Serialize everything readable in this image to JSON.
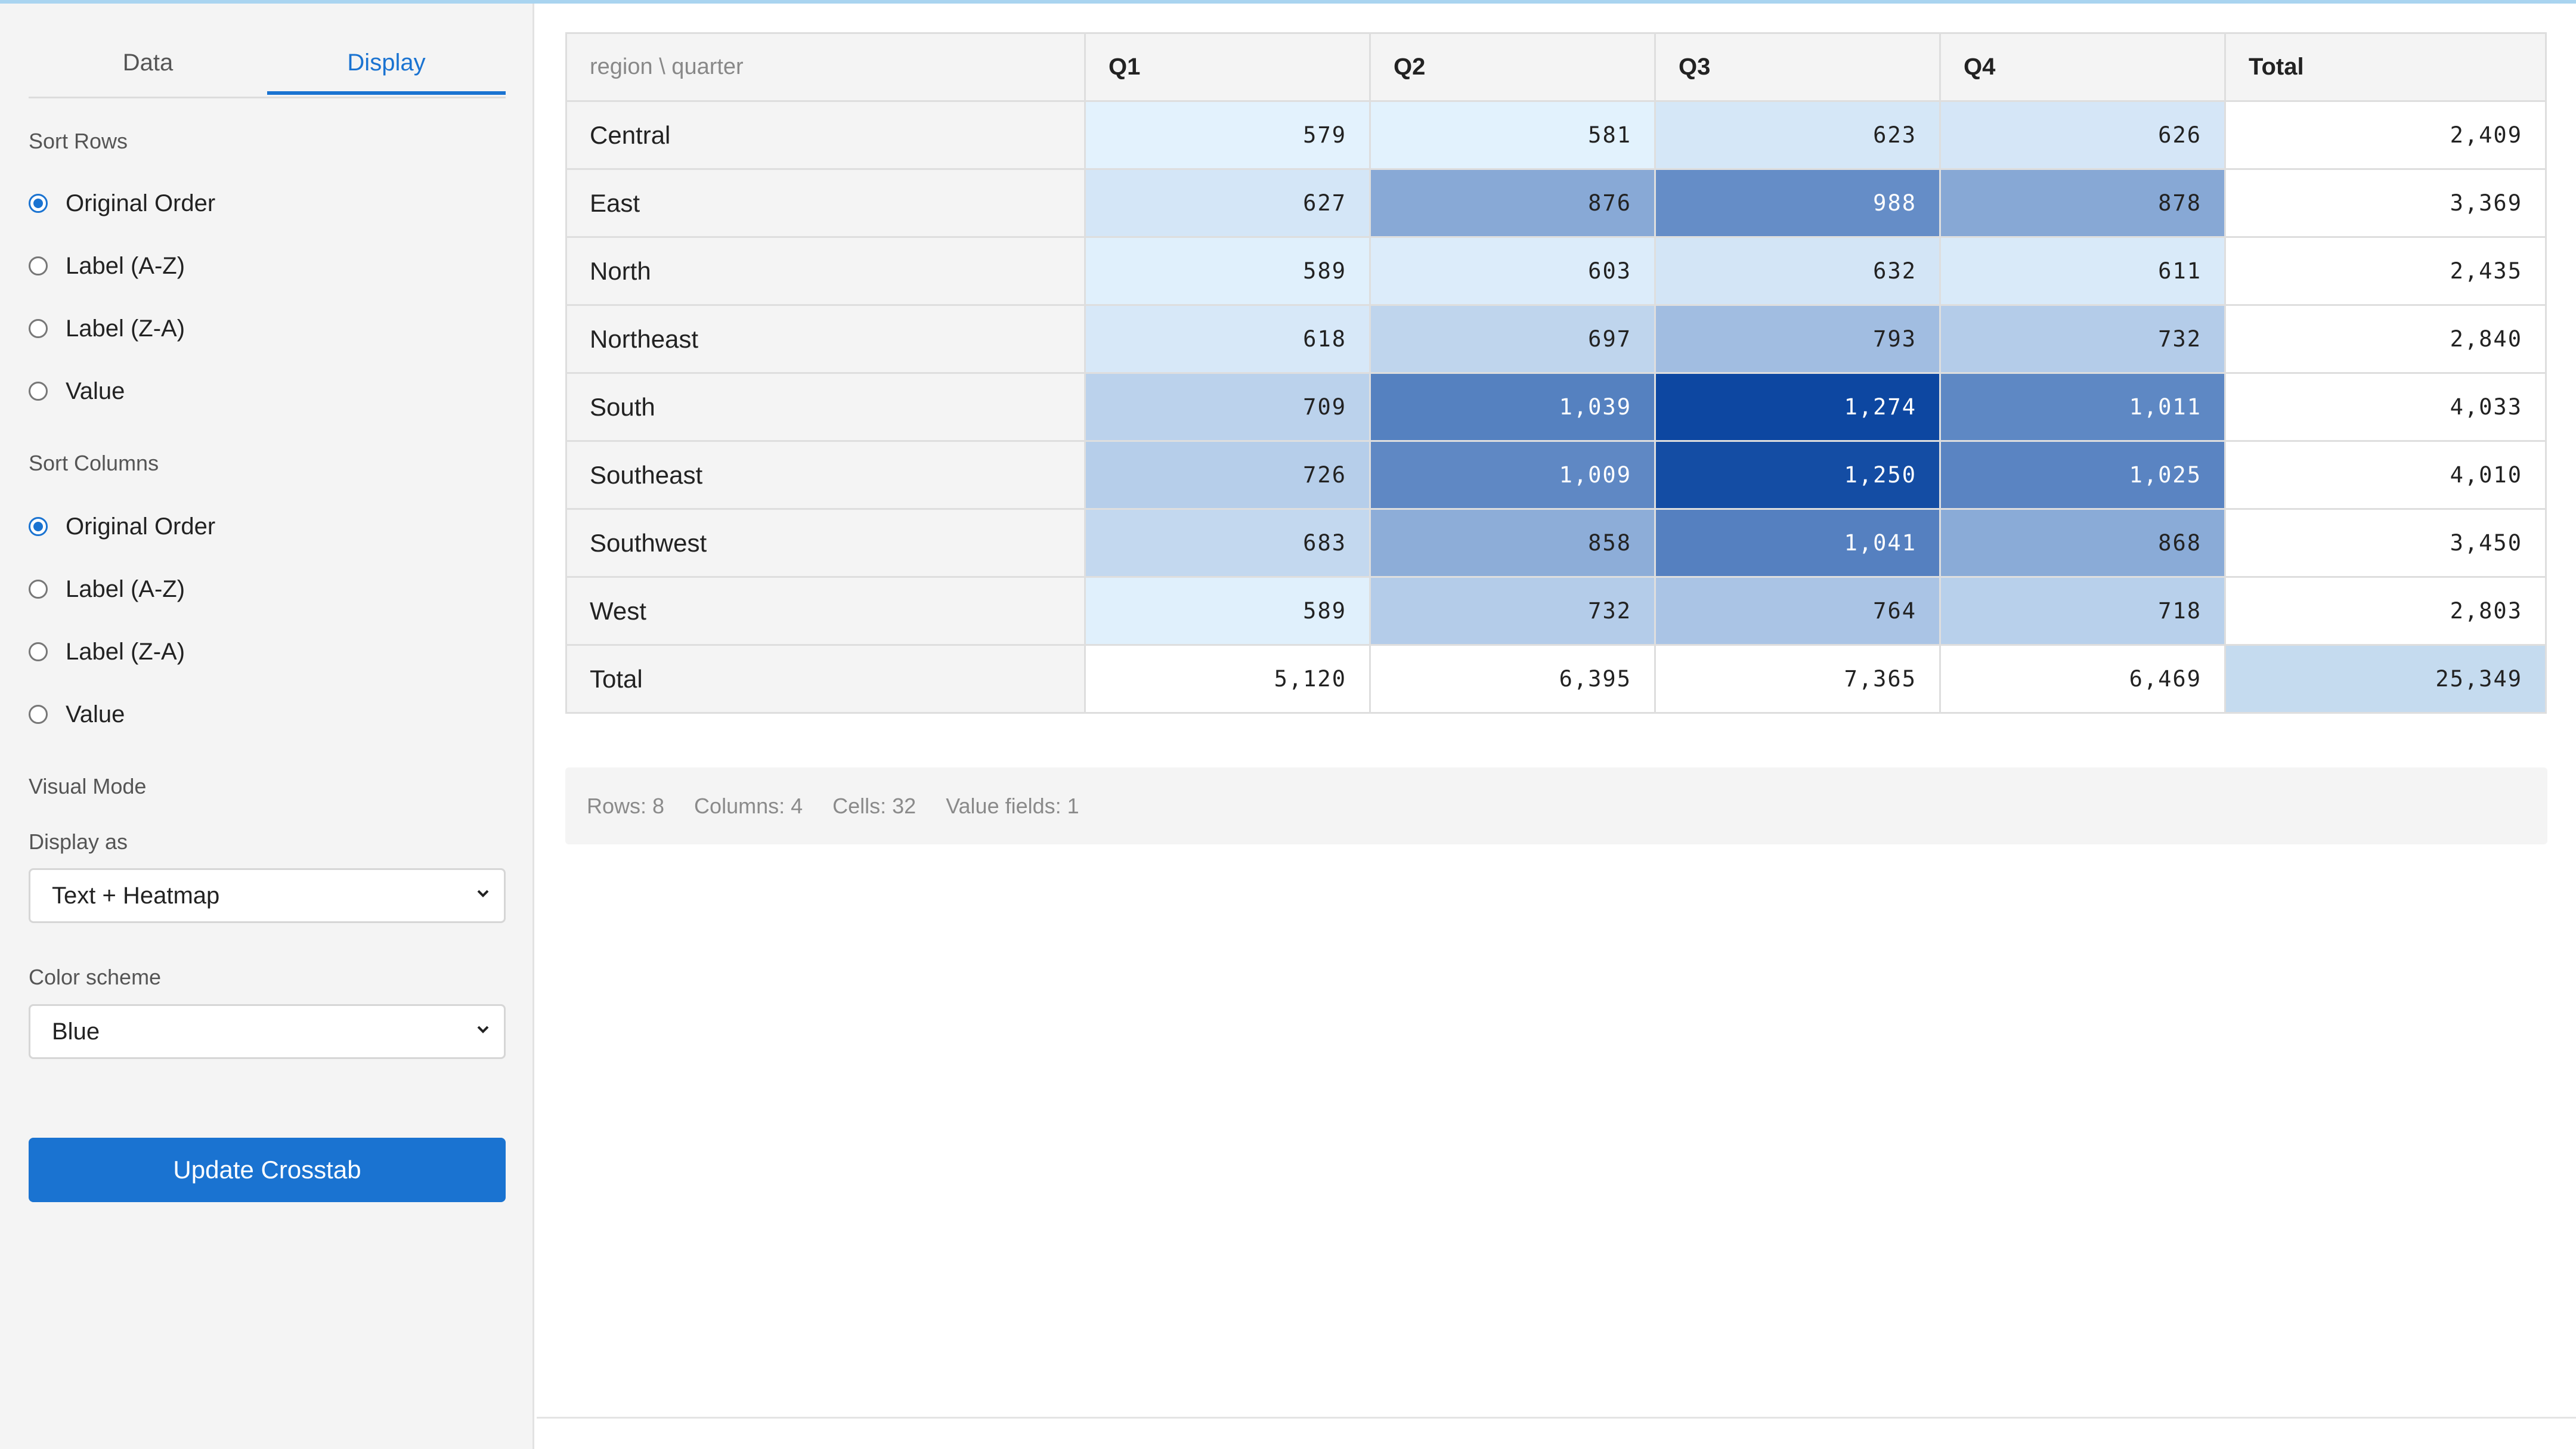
{
  "sidebar": {
    "tabs": [
      {
        "label": "Data",
        "active": false
      },
      {
        "label": "Display",
        "active": true
      }
    ],
    "sort_rows": {
      "label": "Sort Rows",
      "options": [
        "Original Order",
        "Label (A-Z)",
        "Label (Z-A)",
        "Value"
      ],
      "selected": "Original Order"
    },
    "sort_columns": {
      "label": "Sort Columns",
      "options": [
        "Original Order",
        "Label (A-Z)",
        "Label (Z-A)",
        "Value"
      ],
      "selected": "Original Order"
    },
    "visual_mode": {
      "label": "Visual Mode",
      "display_as_label": "Display as",
      "display_as_value": "Text + Heatmap",
      "color_scheme_label": "Color scheme",
      "color_scheme_value": "Blue"
    },
    "update_button": "Update Crosstab"
  },
  "crosstab": {
    "corner_label": "region \\ quarter",
    "columns": [
      "Q1",
      "Q2",
      "Q3",
      "Q4",
      "Total"
    ],
    "rows": [
      {
        "label": "Central",
        "cells": [
          "579",
          "581",
          "623",
          "626"
        ],
        "values": [
          579,
          581,
          623,
          626
        ],
        "total": "2,409"
      },
      {
        "label": "East",
        "cells": [
          "627",
          "876",
          "988",
          "878"
        ],
        "values": [
          627,
          876,
          988,
          878
        ],
        "total": "3,369"
      },
      {
        "label": "North",
        "cells": [
          "589",
          "603",
          "632",
          "611"
        ],
        "values": [
          589,
          603,
          632,
          611
        ],
        "total": "2,435"
      },
      {
        "label": "Northeast",
        "cells": [
          "618",
          "697",
          "793",
          "732"
        ],
        "values": [
          618,
          697,
          793,
          732
        ],
        "total": "2,840"
      },
      {
        "label": "South",
        "cells": [
          "709",
          "1,039",
          "1,274",
          "1,011"
        ],
        "values": [
          709,
          1039,
          1274,
          1011
        ],
        "total": "4,033"
      },
      {
        "label": "Southeast",
        "cells": [
          "726",
          "1,009",
          "1,250",
          "1,025"
        ],
        "values": [
          726,
          1009,
          1250,
          1025
        ],
        "total": "4,010"
      },
      {
        "label": "Southwest",
        "cells": [
          "683",
          "858",
          "1,041",
          "868"
        ],
        "values": [
          683,
          858,
          1041,
          868
        ],
        "total": "3,450"
      },
      {
        "label": "West",
        "cells": [
          "589",
          "732",
          "764",
          "718"
        ],
        "values": [
          589,
          732,
          764,
          718
        ],
        "total": "2,803"
      }
    ],
    "totals_row": {
      "label": "Total",
      "cells": [
        "5,120",
        "6,395",
        "7,365",
        "6,469"
      ],
      "grand_total": "25,349"
    },
    "heat_colors": {
      "low": "#e3f2fd",
      "high": "#0d47a1",
      "grand_total_bg": "#c5dbef"
    }
  },
  "status": {
    "rows": "Rows: 8",
    "columns": "Columns: 4",
    "cells": "Cells: 32",
    "value_fields": "Value fields: 1"
  },
  "icons": {
    "select_arrow": "chevron-down-icon"
  }
}
